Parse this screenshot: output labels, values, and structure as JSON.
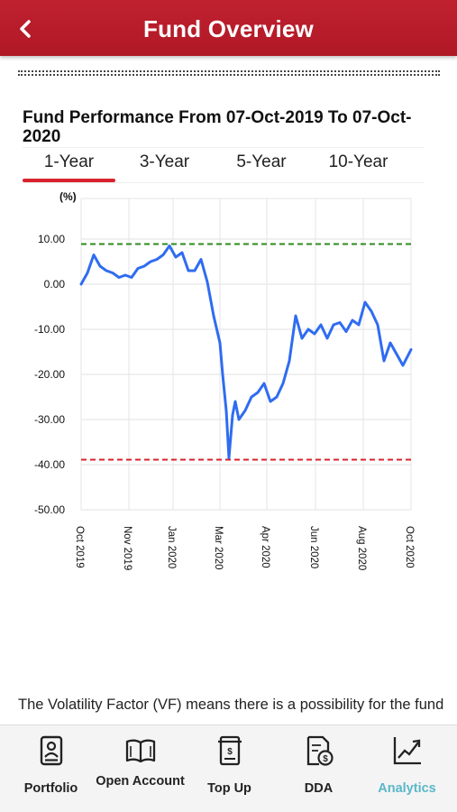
{
  "header": {
    "title": "Fund Overview"
  },
  "chart_section": {
    "title": "Fund Performance From 07-Oct-2019 To 07-Oct-2020",
    "tabs": [
      "1-Year",
      "3-Year",
      "5-Year",
      "10-Year"
    ],
    "active_tab": "1-Year"
  },
  "chart_data": {
    "type": "line",
    "ylabel": "(%)",
    "ylim": [
      -50,
      10
    ],
    "y_ticks": [
      "10.00",
      "0.00",
      "-10.00",
      "-20.00",
      "-30.00",
      "-40.00",
      "-50.00"
    ],
    "x_ticks": [
      "Oct 2019",
      "Nov 2019",
      "Jan 2020",
      "Mar 2020",
      "Apr 2020",
      "Jun 2020",
      "Aug 2020",
      "Oct 2020"
    ],
    "grid": true,
    "reference_lines": [
      {
        "value": 8.9,
        "color": "#2e8b1e",
        "style": "dashed"
      },
      {
        "value": -38.9,
        "color": "#d9232e",
        "style": "dashed"
      }
    ],
    "series": [
      {
        "color": "#2f6cf0",
        "x": [
          "2019-10-07",
          "2019-10-14",
          "2019-10-21",
          "2019-10-28",
          "2019-11-04",
          "2019-11-11",
          "2019-11-18",
          "2019-11-25",
          "2019-12-02",
          "2019-12-09",
          "2019-12-16",
          "2019-12-23",
          "2019-12-30",
          "2020-01-06",
          "2020-01-13",
          "2020-01-20",
          "2020-01-27",
          "2020-02-03",
          "2020-02-10",
          "2020-02-17",
          "2020-02-24",
          "2020-03-02",
          "2020-03-09",
          "2020-03-12",
          "2020-03-16",
          "2020-03-19",
          "2020-03-23",
          "2020-03-26",
          "2020-03-30",
          "2020-04-06",
          "2020-04-13",
          "2020-04-20",
          "2020-04-27",
          "2020-05-04",
          "2020-05-11",
          "2020-05-18",
          "2020-05-25",
          "2020-06-01",
          "2020-06-08",
          "2020-06-15",
          "2020-06-22",
          "2020-06-29",
          "2020-07-06",
          "2020-07-13",
          "2020-07-20",
          "2020-07-27",
          "2020-08-03",
          "2020-08-10",
          "2020-08-17",
          "2020-08-24",
          "2020-08-31",
          "2020-09-07",
          "2020-09-14",
          "2020-09-21",
          "2020-09-28",
          "2020-10-07"
        ],
        "y": [
          0,
          2.5,
          6.5,
          4.0,
          3.0,
          2.5,
          1.5,
          2.0,
          1.5,
          3.5,
          4.0,
          5.0,
          5.5,
          6.5,
          8.5,
          6.0,
          7.0,
          3.0,
          3.0,
          5.5,
          0.5,
          -7.0,
          -13.0,
          -20.0,
          -28.0,
          -38.5,
          -29.0,
          -26.0,
          -30.0,
          -28.0,
          -25.0,
          -24.0,
          -22.0,
          -26.0,
          -25.0,
          -22.0,
          -17.0,
          -7.0,
          -12.0,
          -10.0,
          -11.0,
          -9.0,
          -12.0,
          -9.0,
          -8.5,
          -10.5,
          -8.0,
          -9.0,
          -4.0,
          -6.0,
          -9.0,
          -17.0,
          -13.0,
          -15.5,
          -18.0,
          -14.5
        ]
      }
    ]
  },
  "vf_text": "The Volatility Factor (VF) means there is a possibility for the fund in generating an upside return or downside return around",
  "bottom_nav": [
    {
      "label": "Portfolio",
      "icon": "portfolio-icon"
    },
    {
      "label": "Open Account",
      "icon": "open-book-icon"
    },
    {
      "label": "Top Up",
      "icon": "top-up-icon"
    },
    {
      "label": "DDA",
      "icon": "dda-icon"
    },
    {
      "label": "Analytics",
      "icon": "analytics-icon",
      "active": true
    }
  ],
  "colors": {
    "header": "#b81c2a",
    "accent_red": "#d9232e",
    "line_blue": "#2f6cf0",
    "active_nav": "#5ab7c9"
  }
}
